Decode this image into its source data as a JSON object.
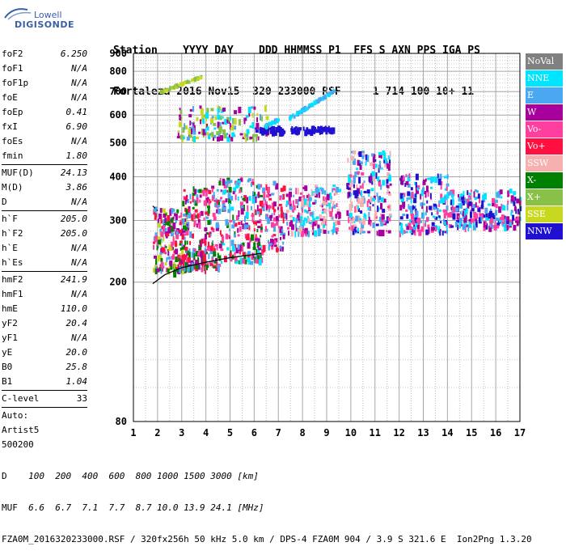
{
  "logo": {
    "line1": "Lowell",
    "line2": "DIGISONDE"
  },
  "header": {
    "line1": "Station    YYYY DAY    DDD HHMMSS P1  FFS S AXN PPS IGA PS",
    "line2": "Fortaleza 2016 Nov15  320 233000 RSF     1 714 100 10+ 11"
  },
  "left_panel": {
    "group1": [
      {
        "label": "foF2",
        "value": "6.250"
      },
      {
        "label": "foF1",
        "value": "N/A"
      },
      {
        "label": "foF1p",
        "value": "N/A"
      },
      {
        "label": "foE",
        "value": "N/A"
      },
      {
        "label": "foEp",
        "value": "0.41"
      },
      {
        "label": "fxI",
        "value": "6.90"
      },
      {
        "label": "foEs",
        "value": "N/A"
      },
      {
        "label": "fmin",
        "value": "1.80"
      }
    ],
    "group2": [
      {
        "label": "MUF(D)",
        "value": "24.13"
      },
      {
        "label": "M(D)",
        "value": "3.86"
      },
      {
        "label": "D",
        "value": "N/A"
      }
    ],
    "group3": [
      {
        "label": "h`F",
        "value": "205.0"
      },
      {
        "label": "h`F2",
        "value": "205.0"
      },
      {
        "label": "h`E",
        "value": "N/A"
      },
      {
        "label": "h`Es",
        "value": "N/A"
      }
    ],
    "group4": [
      {
        "label": "hmF2",
        "value": "241.9"
      },
      {
        "label": "hmF1",
        "value": "N/A"
      },
      {
        "label": "hmE",
        "value": "110.0"
      },
      {
        "label": "yF2",
        "value": "20.4"
      },
      {
        "label": "yF1",
        "value": "N/A"
      },
      {
        "label": "yE",
        "value": "20.0"
      },
      {
        "label": "B0",
        "value": "25.8"
      },
      {
        "label": "B1",
        "value": "1.04"
      }
    ],
    "clevel": {
      "label": "C-level",
      "value": "33"
    },
    "auto": [
      "Auto:",
      "Artist5",
      "500200"
    ]
  },
  "legend": [
    {
      "name": "NoVal",
      "color": "#808080"
    },
    {
      "name": "NNE",
      "color": "#00e5ff"
    },
    {
      "name": "E",
      "color": "#4aa8f0"
    },
    {
      "name": "W",
      "color": "#a8009c"
    },
    {
      "name": "Vo-",
      "color": "#ff3fa0"
    },
    {
      "name": "Vo+",
      "color": "#ff1040"
    },
    {
      "name": "SSW",
      "color": "#f5b0b0"
    },
    {
      "name": "X-",
      "color": "#008000"
    },
    {
      "name": "X+",
      "color": "#88c048"
    },
    {
      "name": "SSE",
      "color": "#c8d820"
    },
    {
      "name": "NNW",
      "color": "#2010d0"
    }
  ],
  "chart_data": {
    "type": "scatter",
    "xlim": [
      1,
      17
    ],
    "ylim": [
      80,
      900
    ],
    "yscale": "log",
    "x_ticks": [
      "1",
      "2",
      "3",
      "4",
      "5",
      "6",
      "7",
      "8",
      "9",
      "10",
      "11",
      "12",
      "13",
      "14",
      "15",
      "16",
      "17"
    ],
    "y_ticks": [
      {
        "v": 80,
        "label": "80"
      },
      {
        "v": 200,
        "label": "200"
      },
      {
        "v": 300,
        "label": "300"
      },
      {
        "v": 400,
        "label": "400"
      },
      {
        "v": 500,
        "label": "500"
      },
      {
        "v": 600,
        "label": "600"
      },
      {
        "v": 700,
        "label": "700"
      },
      {
        "v": 800,
        "label": "800"
      },
      {
        "v": 900,
        "label": "900"
      }
    ],
    "trace": [
      [
        1.8,
        198
      ],
      [
        2.3,
        210
      ],
      [
        3.0,
        220
      ],
      [
        4.0,
        228
      ],
      [
        5.0,
        235
      ],
      [
        6.0,
        240
      ],
      [
        6.3,
        242
      ]
    ],
    "trace_dashed": [
      [
        1.8,
        330
      ],
      [
        2.0,
        320
      ]
    ],
    "clusters": [
      {
        "x": [
          1.8,
          3.2
        ],
        "y": [
          215,
          330
        ],
        "colors": [
          "#ff1040",
          "#a8009c",
          "#ff3fa0",
          "#008000",
          "#4aa8f0",
          "#c8d820"
        ],
        "n": 220
      },
      {
        "x": [
          3.0,
          4.5
        ],
        "y": [
          220,
          380
        ],
        "colors": [
          "#ff3fa0",
          "#a8009c",
          "#ff1040",
          "#4aa8f0",
          "#008000"
        ],
        "n": 220
      },
      {
        "x": [
          4.5,
          6.3
        ],
        "y": [
          230,
          400
        ],
        "colors": [
          "#ff3fa0",
          "#a8009c",
          "#ff1040",
          "#4aa8f0",
          "#00e5ff",
          "#008000"
        ],
        "n": 220
      },
      {
        "x": [
          6.3,
          7.2
        ],
        "y": [
          250,
          390
        ],
        "colors": [
          "#ff3fa0",
          "#ff1040",
          "#a8009c",
          "#4aa8f0"
        ],
        "n": 90
      },
      {
        "x": [
          7.3,
          9.5
        ],
        "y": [
          280,
          380
        ],
        "colors": [
          "#f5b0b0",
          "#4aa8f0",
          "#a8009c",
          "#ff3fa0",
          "#00e5ff"
        ],
        "n": 200
      },
      {
        "x": [
          9.8,
          11.6
        ],
        "y": [
          280,
          480
        ],
        "colors": [
          "#f5b0b0",
          "#a8009c",
          "#4aa8f0",
          "#00e5ff",
          "#ff3fa0",
          "#2010d0"
        ],
        "n": 220
      },
      {
        "x": [
          12.0,
          14.0
        ],
        "y": [
          280,
          410
        ],
        "colors": [
          "#2010d0",
          "#a8009c",
          "#ff3fa0",
          "#4aa8f0",
          "#00e5ff"
        ],
        "n": 200
      },
      {
        "x": [
          14.0,
          17.0
        ],
        "y": [
          290,
          370
        ],
        "colors": [
          "#2010d0",
          "#a8009c",
          "#ff3fa0",
          "#4aa8f0",
          "#00e5ff"
        ],
        "n": 220
      },
      {
        "x": [
          2.8,
          6.5
        ],
        "y": [
          520,
          640
        ],
        "colors": [
          "#4aa8f0",
          "#00e5ff",
          "#c8d820",
          "#a8009c",
          "#88c048"
        ],
        "n": 160
      },
      {
        "x": [
          6.0,
          7.2
        ],
        "y": [
          540,
          560
        ],
        "colors": [
          "#2010d0"
        ],
        "n": 40
      },
      {
        "x": [
          7.5,
          9.3
        ],
        "y": [
          545,
          560
        ],
        "colors": [
          "#2010d0"
        ],
        "n": 60
      }
    ],
    "streaks": [
      {
        "x": [
          2.0,
          3.8
        ],
        "y": [
          700,
          780
        ],
        "colors": [
          "#c8d820",
          "#88c048"
        ],
        "n": 60
      },
      {
        "x": [
          7.4,
          9.3
        ],
        "y": [
          590,
          710
        ],
        "colors": [
          "#4aa8f0",
          "#00e5ff"
        ],
        "n": 80
      },
      {
        "x": [
          6.4,
          7.0
        ],
        "y": [
          560,
          590
        ],
        "colors": [
          "#4aa8f0",
          "#00e5ff"
        ],
        "n": 30
      }
    ]
  },
  "footer": {
    "line1_label": "D",
    "line1_values": "    100  200  400  600  800 1000 1500 3000 [km]",
    "line2_label": "MUF",
    "line2_values": "  6.6  6.7  7.1  7.7  8.7 10.0 13.9 24.1 [MHz]",
    "line3": "FZA0M_2016320233000.RSF / 320fx256h 50 kHz 5.0 km / DPS-4 FZA0M 904 / 3.9 S 321.6 E  Ion2Png 1.3.20"
  }
}
